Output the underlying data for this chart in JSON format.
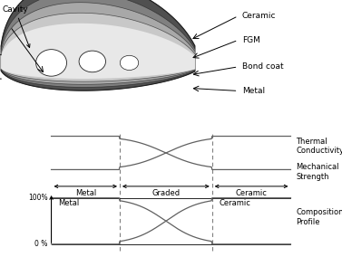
{
  "labels_right": [
    "Ceramic",
    "FGM",
    "Bond coat",
    "Metal"
  ],
  "label_cavity": "Cavity",
  "label_thermal": "Thermal\nConductivity",
  "label_mechanical": "Mechanical\nStrength",
  "label_composition": "Composition\nProfile",
  "label_metal_zone": "Metal",
  "label_graded_zone": "Graded",
  "label_ceramic_zone": "Ceramic",
  "label_metal_comp": "Metal",
  "label_ceramic_comp": "Ceramic",
  "label_100": "100%",
  "label_0": "0 %",
  "ceramic_color": "#505050",
  "fgm_color": "#808080",
  "bond_color": "#a8a8a8",
  "metal_color": "#c8c8c8",
  "inner_color": "#e8e8e8",
  "outline_color": "#202020",
  "curve_color": "#606060",
  "line_color": "#000000"
}
